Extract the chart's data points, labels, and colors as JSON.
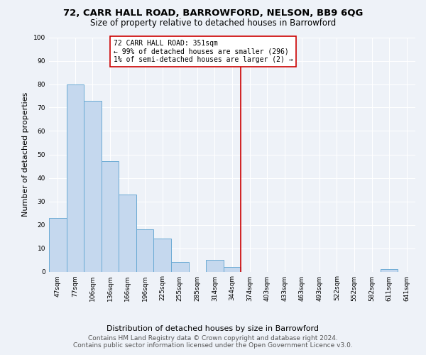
{
  "title": "72, CARR HALL ROAD, BARROWFORD, NELSON, BB9 6QG",
  "subtitle": "Size of property relative to detached houses in Barrowford",
  "xlabel": "Distribution of detached houses by size in Barrowford",
  "ylabel": "Number of detached properties",
  "bar_labels": [
    "47sqm",
    "77sqm",
    "106sqm",
    "136sqm",
    "166sqm",
    "196sqm",
    "225sqm",
    "255sqm",
    "285sqm",
    "314sqm",
    "344sqm",
    "374sqm",
    "403sqm",
    "433sqm",
    "463sqm",
    "493sqm",
    "522sqm",
    "552sqm",
    "582sqm",
    "611sqm",
    "641sqm"
  ],
  "bar_values": [
    23,
    80,
    73,
    47,
    33,
    18,
    14,
    4,
    0,
    5,
    2,
    0,
    0,
    0,
    0,
    0,
    0,
    0,
    0,
    1,
    0
  ],
  "bar_color": "#c5d8ee",
  "bar_edge_color": "#6aaad4",
  "ylim": [
    0,
    100
  ],
  "yticks": [
    0,
    10,
    20,
    30,
    40,
    50,
    60,
    70,
    80,
    90,
    100
  ],
  "vline_x_index": 10.5,
  "vline_color": "#cc0000",
  "annotation_text": "72 CARR HALL ROAD: 351sqm\n← 99% of detached houses are smaller (296)\n1% of semi-detached houses are larger (2) →",
  "footer": "Contains HM Land Registry data © Crown copyright and database right 2024.\nContains public sector information licensed under the Open Government Licence v3.0.",
  "background_color": "#eef2f8",
  "grid_color": "#ffffff",
  "title_fontsize": 9.5,
  "subtitle_fontsize": 8.5,
  "axis_label_fontsize": 8,
  "tick_fontsize": 6.5,
  "footer_fontsize": 6.5
}
